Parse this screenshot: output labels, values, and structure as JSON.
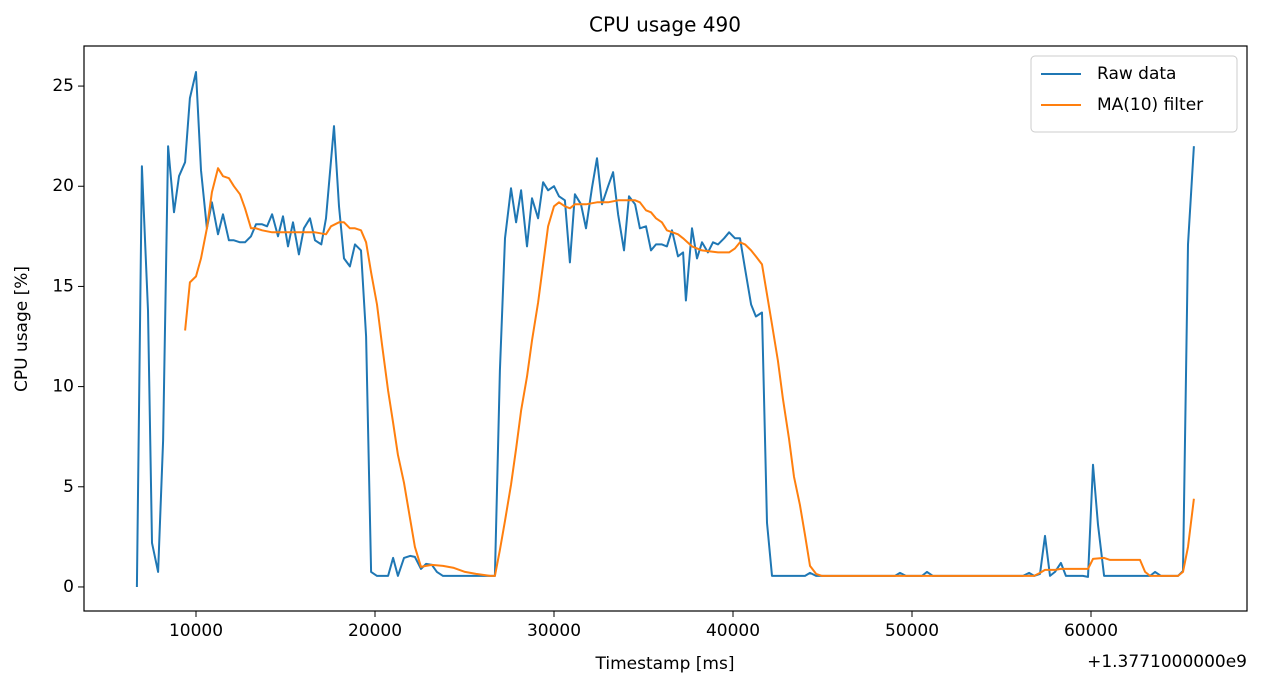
{
  "chart_data": {
    "type": "line",
    "title": "CPU usage 490",
    "x_label": "Timestamp [ms]",
    "y_label": "CPU usage [%]",
    "x_offset_label": "+1.3771000000e9",
    "xlim": [
      3743,
      68715
    ],
    "ylim": [
      -1.2,
      27.0
    ],
    "xticks": [
      10000,
      20000,
      30000,
      40000,
      50000,
      60000
    ],
    "yticks": [
      0,
      5,
      10,
      15,
      20,
      25
    ],
    "grid": false,
    "legend": "upper right",
    "series": [
      {
        "name": "Raw data",
        "color": "#1f77b4",
        "x": [
          6700,
          6980,
          7320,
          7540,
          7880,
          8160,
          8440,
          8770,
          9050,
          9390,
          9660,
          10000,
          10280,
          10610,
          10890,
          11230,
          11510,
          11840,
          12120,
          12460,
          12740,
          13070,
          13350,
          13690,
          13970,
          14250,
          14580,
          14860,
          15140,
          15420,
          15750,
          16030,
          16370,
          16650,
          17000,
          17260,
          17710,
          17990,
          18270,
          18600,
          18880,
          19220,
          19500,
          19780,
          20110,
          20730,
          21010,
          21280,
          21620,
          21960,
          22230,
          22570,
          22850,
          23180,
          23460,
          23800,
          26700,
          26980,
          27260,
          27600,
          27880,
          28160,
          28490,
          28770,
          29110,
          29390,
          29670,
          30000,
          30280,
          30610,
          30890,
          31170,
          31510,
          31790,
          32120,
          32400,
          32680,
          33020,
          33300,
          33580,
          33910,
          34190,
          34530,
          34800,
          35140,
          35420,
          35700,
          36030,
          36310,
          36590,
          36930,
          37210,
          37370,
          37710,
          37990,
          38270,
          38600,
          38880,
          39160,
          39500,
          39780,
          40110,
          40390,
          40670,
          41010,
          41280,
          41620,
          41900,
          42180,
          44020,
          44300,
          44640,
          49050,
          49330,
          49660,
          50560,
          50840,
          51170,
          56200,
          56540,
          56820,
          57150,
          57430,
          57710,
          57990,
          58320,
          58600,
          59550,
          59830,
          60110,
          60390,
          60730,
          63300,
          63580,
          63910,
          64860,
          65140,
          65420,
          65750
        ],
        "values": [
          0,
          21,
          13.8,
          2.2,
          0.75,
          7.3,
          22,
          18.7,
          20.5,
          21.2,
          24.4,
          25.7,
          20.8,
          17.9,
          19.2,
          17.6,
          18.6,
          17.3,
          17.3,
          17.2,
          17.2,
          17.5,
          18.1,
          18.1,
          18.0,
          18.6,
          17.5,
          18.5,
          17.0,
          18.2,
          16.6,
          17.9,
          18.4,
          17.3,
          17.1,
          18.4,
          23.0,
          19.0,
          16.4,
          16.0,
          17.1,
          16.8,
          12.5,
          0.75,
          0.55,
          0.55,
          1.45,
          0.55,
          1.45,
          1.55,
          1.5,
          0.9,
          1.15,
          1.1,
          0.75,
          0.55,
          0.55,
          10.8,
          17.4,
          19.9,
          18.2,
          19.8,
          17.0,
          19.4,
          18.4,
          20.2,
          19.8,
          20.0,
          19.5,
          19.3,
          16.2,
          19.6,
          19.1,
          17.9,
          19.9,
          21.4,
          19.1,
          20.0,
          20.7,
          18.6,
          16.8,
          19.5,
          19.1,
          17.9,
          18.0,
          16.8,
          17.1,
          17.1,
          17.0,
          17.8,
          16.5,
          16.7,
          14.3,
          17.9,
          16.4,
          17.2,
          16.7,
          17.2,
          17.1,
          17.4,
          17.7,
          17.4,
          17.4,
          15.9,
          14.1,
          13.5,
          13.7,
          3.2,
          0.55,
          0.55,
          0.7,
          0.55,
          0.55,
          0.7,
          0.55,
          0.55,
          0.75,
          0.55,
          0.55,
          0.7,
          0.55,
          0.65,
          2.55,
          0.55,
          0.75,
          1.2,
          0.55,
          0.55,
          0.5,
          6.1,
          3.1,
          0.55,
          0.55,
          0.75,
          0.55,
          0.55,
          0.8,
          17.1,
          22.0
        ]
      },
      {
        "name": "MA(10) filter",
        "color": "#ff7f0e",
        "x": [
          9390,
          9660,
          10000,
          10280,
          10610,
          10890,
          11230,
          11510,
          11840,
          12120,
          12460,
          12740,
          13070,
          13350,
          13690,
          14250,
          15420,
          16650,
          17260,
          17540,
          17990,
          18270,
          18600,
          18880,
          19220,
          19500,
          19780,
          20110,
          20390,
          20730,
          21010,
          21280,
          21620,
          21960,
          22230,
          22570,
          22850,
          23180,
          23800,
          24410,
          25030,
          25640,
          26430,
          26700,
          26980,
          27260,
          27600,
          27880,
          28160,
          28490,
          28770,
          29110,
          29390,
          29670,
          30000,
          30280,
          30610,
          30890,
          31170,
          31790,
          32400,
          33020,
          33580,
          34530,
          34800,
          35140,
          35420,
          35700,
          36030,
          36310,
          36930,
          37210,
          37710,
          38270,
          39160,
          39780,
          40110,
          40390,
          40670,
          41010,
          41280,
          41620,
          41900,
          42180,
          42510,
          42790,
          43130,
          43410,
          43740,
          44020,
          44300,
          44640,
          44970,
          56820,
          57150,
          57430,
          57990,
          58320,
          59550,
          59830,
          60110,
          60730,
          61060,
          62740,
          63020,
          63300,
          64860,
          65140,
          65420,
          65750
        ],
        "values": [
          12.8,
          15.2,
          15.5,
          16.4,
          17.9,
          19.7,
          20.9,
          20.5,
          20.4,
          20.0,
          19.6,
          18.9,
          17.9,
          17.9,
          17.8,
          17.7,
          17.7,
          17.7,
          17.6,
          18.0,
          18.2,
          18.2,
          17.9,
          17.9,
          17.8,
          17.2,
          15.7,
          14.1,
          12.1,
          9.8,
          8.2,
          6.6,
          5.2,
          3.4,
          2.0,
          1.0,
          1.05,
          1.1,
          1.05,
          0.95,
          0.75,
          0.65,
          0.55,
          0.55,
          1.85,
          3.3,
          5.1,
          6.9,
          8.8,
          10.5,
          12.3,
          14.2,
          16.1,
          18.0,
          19.0,
          19.2,
          19.0,
          18.9,
          19.1,
          19.1,
          19.2,
          19.2,
          19.3,
          19.3,
          19.2,
          18.8,
          18.7,
          18.4,
          18.2,
          17.8,
          17.6,
          17.4,
          17.0,
          16.8,
          16.7,
          16.7,
          16.9,
          17.2,
          17.1,
          16.8,
          16.5,
          16.1,
          14.6,
          13.1,
          11.3,
          9.4,
          7.4,
          5.5,
          4.1,
          2.6,
          1.05,
          0.65,
          0.55,
          0.55,
          0.7,
          0.85,
          0.85,
          0.9,
          0.9,
          0.9,
          1.4,
          1.45,
          1.35,
          1.35,
          0.75,
          0.55,
          0.55,
          0.75,
          2.0,
          4.4
        ]
      }
    ]
  }
}
